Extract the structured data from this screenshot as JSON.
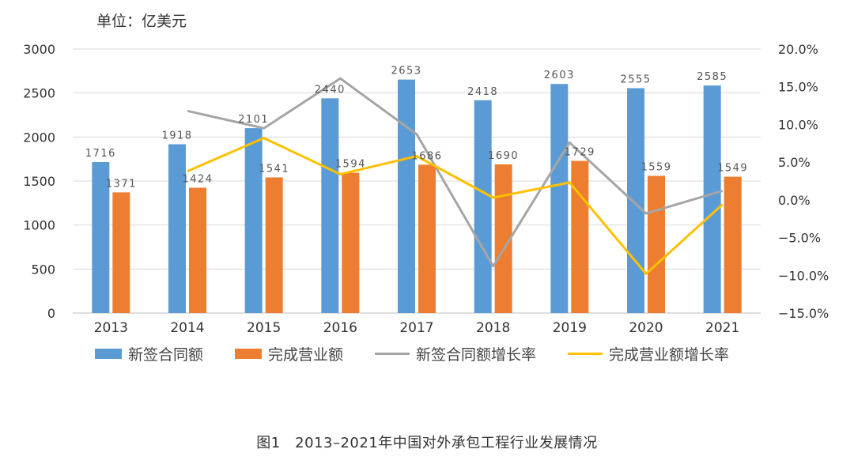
{
  "unit_label": "单位：亿美元",
  "caption": "图1　2013–2021年中国对外承包工程行业发展情况",
  "colors": {
    "contract": "#5b9bd5",
    "revenue": "#ed7d31",
    "contract_growth": "#a5a5a5",
    "revenue_growth": "#ffc000",
    "grid": "#d9d9d9"
  },
  "legend": [
    {
      "label": "新签合同额",
      "kind": "bar",
      "color": "#5b9bd5"
    },
    {
      "label": "完成营业额",
      "kind": "bar",
      "color": "#ed7d31"
    },
    {
      "label": "新签合同额增长率",
      "kind": "line",
      "color": "#a5a5a5"
    },
    {
      "label": "完成营业额增长率",
      "kind": "line",
      "color": "#ffc000"
    }
  ],
  "chart_data": {
    "type": "bar",
    "title": "",
    "categories": [
      "2013",
      "2014",
      "2015",
      "2016",
      "2017",
      "2018",
      "2019",
      "2020",
      "2021"
    ],
    "series": [
      {
        "name": "新签合同额",
        "type": "bar",
        "axis": "left",
        "values": [
          1716,
          1918,
          2101,
          2440,
          2653,
          2418,
          2603,
          2555,
          2585
        ]
      },
      {
        "name": "完成营业额",
        "type": "bar",
        "axis": "left",
        "values": [
          1371,
          1424,
          1541,
          1594,
          1686,
          1690,
          1729,
          1559,
          1549
        ]
      },
      {
        "name": "新签合同额增长率",
        "type": "line",
        "axis": "right",
        "values": [
          null,
          11.8,
          9.5,
          16.1,
          8.7,
          -8.8,
          7.6,
          -1.8,
          1.2
        ]
      },
      {
        "name": "完成营业额增长率",
        "type": "line",
        "axis": "right",
        "values": [
          null,
          3.8,
          8.2,
          3.4,
          5.8,
          0.3,
          2.3,
          -9.8,
          -0.6
        ]
      }
    ],
    "y_left": {
      "min": 0,
      "max": 3000,
      "ticks": [
        "0",
        "500",
        "1000",
        "1500",
        "2000",
        "2500",
        "3000"
      ]
    },
    "y_right": {
      "min": -15,
      "max": 20,
      "ticks": [
        "−15.0%",
        "−10.0%",
        "−5.0%",
        "0.0%",
        "5.0%",
        "10.0%",
        "15.0%",
        "20.0%"
      ]
    },
    "grid": true,
    "legend_position": "bottom"
  }
}
